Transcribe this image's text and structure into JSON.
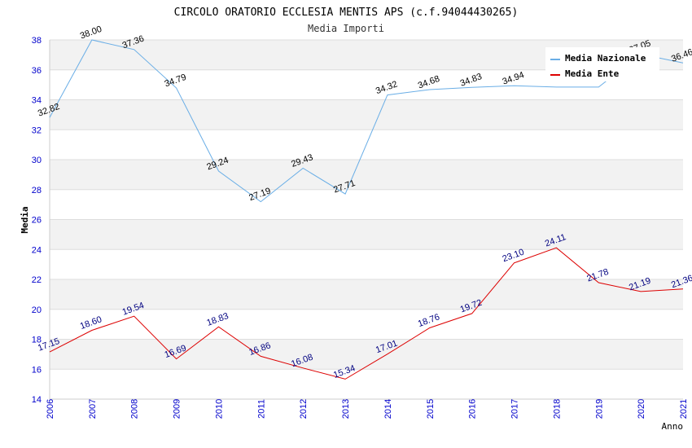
{
  "chart_data": {
    "type": "line",
    "title": "CIRCOLO ORATORIO ECCLESIA MENTIS APS (c.f.94044430265)",
    "subtitle": "Media Importi",
    "xlabel": "Anno",
    "ylabel": "Media",
    "ylim": [
      14,
      38
    ],
    "yticks": [
      14,
      16,
      18,
      20,
      22,
      24,
      26,
      28,
      30,
      32,
      34,
      36,
      38
    ],
    "x": [
      "2006",
      "2007",
      "2008",
      "2009",
      "2010",
      "2011",
      "2012",
      "2013",
      "2014",
      "2015",
      "2016",
      "2017",
      "2018",
      "2019",
      "2020",
      "2021"
    ],
    "legend_position": "top-right",
    "grid": true,
    "series": [
      {
        "name": "Media Nazionale",
        "color": "#6aaee6",
        "label_color": "#000000",
        "values": [
          32.82,
          38.0,
          37.36,
          34.79,
          29.24,
          27.19,
          29.43,
          27.71,
          34.32,
          34.68,
          34.83,
          34.94,
          34.85,
          34.85,
          37.05,
          36.46
        ],
        "labels": [
          "32.82",
          "38.00",
          "37.36",
          "34.79",
          "29.24",
          "27.19",
          "29.43",
          "27.71",
          "34.32",
          "34.68",
          "34.83",
          "34.94",
          "",
          "",
          "37.05",
          "36.46"
        ]
      },
      {
        "name": "Media Ente",
        "color": "#dd0000",
        "label_color": "#000080",
        "values": [
          17.15,
          18.6,
          19.54,
          16.69,
          18.83,
          16.86,
          16.08,
          15.34,
          17.01,
          18.76,
          19.72,
          23.1,
          24.11,
          21.78,
          21.19,
          21.36
        ],
        "labels": [
          "17.15",
          "18.60",
          "19.54",
          "16.69",
          "18.83",
          "16.86",
          "16.08",
          "15.34",
          "17.01",
          "18.76",
          "19.72",
          "23.10",
          "24.11",
          "21.78",
          "21.19",
          "21.36"
        ]
      }
    ]
  }
}
